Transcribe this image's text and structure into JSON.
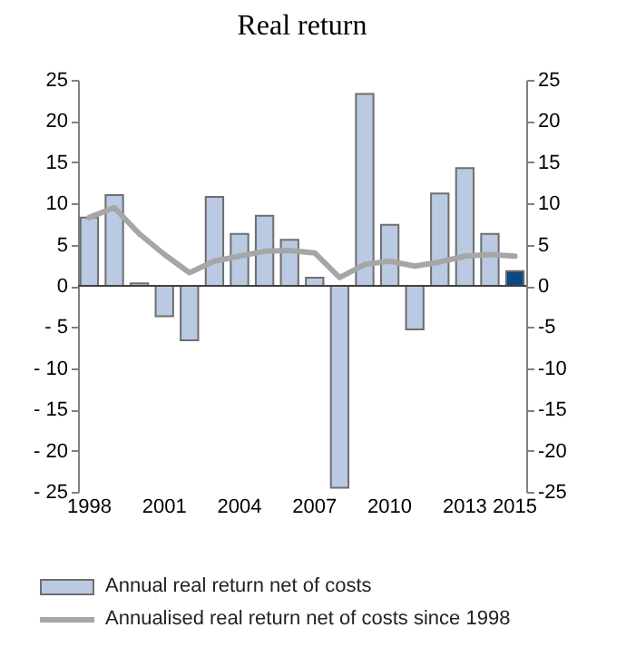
{
  "chart_data": {
    "type": "bar",
    "title": "Real return",
    "categories": [
      "1998",
      null,
      null,
      "2001",
      null,
      null,
      "2004",
      null,
      null,
      "2007",
      null,
      null,
      "2010",
      null,
      null,
      "2013",
      null,
      "2015"
    ],
    "series": [
      {
        "name": "Annual real return net of costs",
        "color": "#b9cae2",
        "colors": [
          "#b9cae2",
          "#b9cae2",
          "#b9cae2",
          "#b9cae2",
          "#b9cae2",
          "#b9cae2",
          "#b9cae2",
          "#b9cae2",
          "#b9cae2",
          "#b9cae2",
          "#b9cae2",
          "#b9cae2",
          "#b9cae2",
          "#b9cae2",
          "#b9cae2",
          "#b9cae2",
          "#b9cae2",
          "#0b4a80"
        ],
        "values": [
          8.3,
          11.0,
          0.3,
          -3.7,
          -6.6,
          10.8,
          6.3,
          8.5,
          5.6,
          1.0,
          -24.5,
          23.3,
          7.4,
          -5.3,
          11.2,
          14.3,
          6.3,
          1.8
        ]
      },
      {
        "name": "Annualised real return net of costs since 1998",
        "type": "line",
        "color": "#a6a6a6",
        "values": [
          8.3,
          9.5,
          6.3,
          3.8,
          1.6,
          3.0,
          3.6,
          4.2,
          4.3,
          4.0,
          1.0,
          2.6,
          3.0,
          2.4,
          2.9,
          3.6,
          3.8,
          3.6
        ]
      }
    ],
    "ylim": [
      -25,
      25
    ],
    "yticks": [
      {
        "value": -25,
        "label": "- 25"
      },
      {
        "value": -20,
        "label": "- 20"
      },
      {
        "value": -15,
        "label": "- 15"
      },
      {
        "value": -10,
        "label": "- 10"
      },
      {
        "value": -5,
        "label": "- 5"
      },
      0,
      5,
      10,
      15,
      20,
      25
    ],
    "y2lim": [
      -25,
      25
    ],
    "y2ticks": [
      -25,
      -20,
      -15,
      -10,
      -5,
      0,
      5,
      10,
      15,
      20,
      25
    ],
    "ref_lines": [
      {
        "axis": "y",
        "value": 0,
        "color": "#404040"
      }
    ],
    "grid": false,
    "legend": "bottom"
  }
}
